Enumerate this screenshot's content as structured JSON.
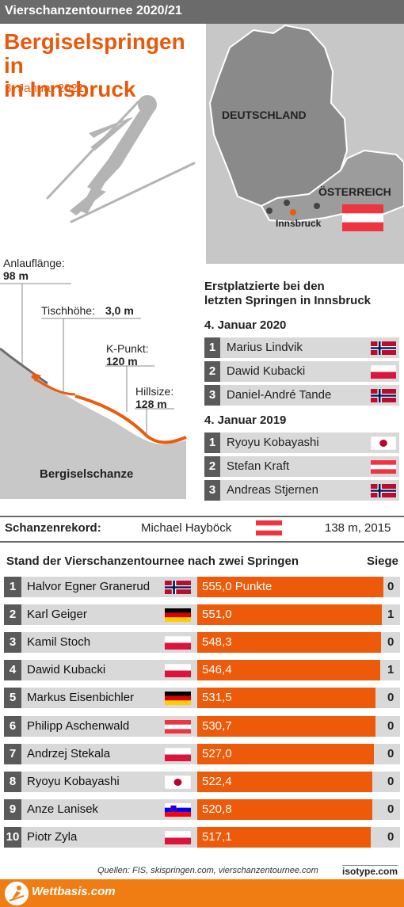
{
  "header": {
    "series": "Vierschanzentournee 2020/21"
  },
  "event": {
    "title_line1": "Bergiselspringen in",
    "title_line2": "in Innsbruck",
    "date": "3. Januar 2021"
  },
  "map": {
    "country_de": "DEUTSCHLAND",
    "country_at": "ÖSTERREICH",
    "city": "Innsbruck"
  },
  "hill": {
    "anlauf_label": "Anlauflänge:",
    "anlauf_value": "98 m",
    "tisch_label": "Tischhöhe:",
    "tisch_value": "3,0 m",
    "kpunkt_label": "K-Punkt:",
    "kpunkt_value": "120 m",
    "hillsize_label": "Hillsize:",
    "hillsize_value": "128 m",
    "name": "Bergiselschanze"
  },
  "winners": {
    "title_line1": "Erstplatzierte bei den",
    "title_line2": "letzten Springen in Innsbruck",
    "groups": [
      {
        "date": "4. Januar 2020",
        "rows": [
          {
            "rank": "1",
            "name": "Marius Lindvik",
            "flag": "norway"
          },
          {
            "rank": "2",
            "name": "Dawid Kubacki",
            "flag": "poland"
          },
          {
            "rank": "3",
            "name": "Daniel-André Tande",
            "flag": "norway"
          }
        ]
      },
      {
        "date": "4. Januar 2019",
        "rows": [
          {
            "rank": "1",
            "name": "Ryoyu Kobayashi",
            "flag": "japan"
          },
          {
            "rank": "2",
            "name": "Stefan Kraft",
            "flag": "austria"
          },
          {
            "rank": "3",
            "name": "Andreas Stjernen",
            "flag": "norway"
          }
        ]
      }
    ]
  },
  "record": {
    "label": "Schanzenrekord:",
    "holder": "Michael Hayböck",
    "flag": "austria",
    "value": "138 m, 2015"
  },
  "standings": {
    "title": "Stand der Vierschanzentournee nach zwei Springen",
    "siege_label": "Siege"
  },
  "chart_data": {
    "type": "bar",
    "title": "Stand der Vierschanzentournee nach zwei Springen",
    "unit_label": "Punkte",
    "xlim": [
      0,
      555
    ],
    "rows": [
      {
        "rank": "1",
        "name": "Halvor Egner Granerud",
        "flag": "norway",
        "points": 555.0,
        "points_label": "555,0 Punkte",
        "siege": "0"
      },
      {
        "rank": "2",
        "name": "Karl Geiger",
        "flag": "germany",
        "points": 551.0,
        "points_label": "551,0",
        "siege": "1"
      },
      {
        "rank": "3",
        "name": "Kamil Stoch",
        "flag": "poland",
        "points": 548.3,
        "points_label": "548,3",
        "siege": "0"
      },
      {
        "rank": "4",
        "name": "Dawid Kubacki",
        "flag": "poland",
        "points": 546.4,
        "points_label": "546,4",
        "siege": "1"
      },
      {
        "rank": "5",
        "name": "Markus Eisenbichler",
        "flag": "germany",
        "points": 531.5,
        "points_label": "531,5",
        "siege": "0"
      },
      {
        "rank": "6",
        "name": "Philipp Aschenwald",
        "flag": "austria",
        "points": 530.7,
        "points_label": "530,7",
        "siege": "0"
      },
      {
        "rank": "7",
        "name": "Andrzej Stekala",
        "flag": "poland",
        "points": 527.0,
        "points_label": "527,0",
        "siege": "0"
      },
      {
        "rank": "8",
        "name": "Ryoyu Kobayashi",
        "flag": "japan",
        "points": 522.4,
        "points_label": "522,4",
        "siege": "0"
      },
      {
        "rank": "9",
        "name": "Anze Lanisek",
        "flag": "slovenia",
        "points": 520.8,
        "points_label": "520,8",
        "siege": "0"
      },
      {
        "rank": "10",
        "name": "Piotr Zyla",
        "flag": "poland",
        "points": 517.1,
        "points_label": "517,1",
        "siege": "0"
      }
    ]
  },
  "footer": {
    "sources": "Quellen: FIS, skispringen.com, vierschanzentournee.com",
    "credit": "isotype.com",
    "brand": "Wettbasis.com"
  },
  "colors": {
    "accent": "#ec5a0a",
    "title": "#e8590c",
    "header": "#6b6b6b",
    "row_bg": "#d9d9d9",
    "rank_bg": "#5a5a5a"
  }
}
